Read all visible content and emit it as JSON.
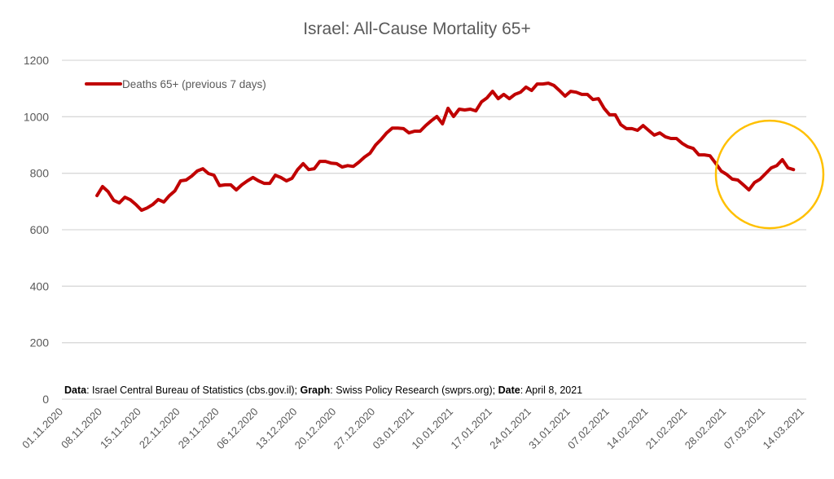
{
  "chart_data": {
    "type": "line",
    "title": "Israel: All-Cause Mortality 65+",
    "xlabel": "",
    "ylabel": "",
    "ylim": [
      0,
      1200
    ],
    "yticks": [
      0,
      200,
      400,
      600,
      800,
      1000,
      1200
    ],
    "grid": true,
    "x_start_date": "01.11.2020",
    "x_end_date": "14.03.2021",
    "xtick_labels": [
      "01.11.2020",
      "08.11.2020",
      "15.11.2020",
      "22.11.2020",
      "29.11.2020",
      "06.12.2020",
      "13.12.2020",
      "20.12.2020",
      "27.12.2020",
      "03.01.2021",
      "10.01.2021",
      "17.01.2021",
      "24.01.2021",
      "31.01.2021",
      "07.02.2021",
      "14.02.2021",
      "21.02.2021",
      "28.02.2021",
      "07.03.2021",
      "14.03.2021"
    ],
    "legend": {
      "position": "top-left",
      "entries": [
        "Deaths 65+ (previous 7 days)"
      ]
    },
    "series": [
      {
        "name": "Deaths 65+ (previous 7 days)",
        "color": "#c00000",
        "start_day_offset": 6,
        "day_step": 1,
        "values": [
          721,
          753,
          735,
          704,
          695,
          715,
          706,
          689,
          669,
          677,
          689,
          707,
          698,
          721,
          738,
          773,
          776,
          790,
          808,
          816,
          799,
          793,
          756,
          759,
          759,
          741,
          759,
          773,
          785,
          773,
          764,
          764,
          793,
          785,
          773,
          782,
          813,
          834,
          813,
          816,
          842,
          842,
          836,
          834,
          822,
          827,
          824,
          839,
          857,
          871,
          900,
          920,
          943,
          960,
          960,
          958,
          943,
          949,
          949,
          969,
          986,
          1001,
          975,
          1030,
          1001,
          1027,
          1024,
          1027,
          1021,
          1053,
          1067,
          1090,
          1064,
          1079,
          1064,
          1079,
          1087,
          1105,
          1093,
          1116,
          1116,
          1119,
          1111,
          1093,
          1073,
          1090,
          1087,
          1079,
          1079,
          1061,
          1064,
          1030,
          1007,
          1007,
          972,
          958,
          958,
          952,
          969,
          952,
          935,
          943,
          929,
          923,
          923,
          906,
          894,
          888,
          865,
          865,
          862,
          836,
          808,
          796,
          779,
          776,
          759,
          741,
          767,
          779,
          799,
          819,
          827,
          848,
          819,
          813
        ]
      }
    ],
    "annotations": [
      {
        "type": "circle",
        "color": "#ffc000",
        "center_date": "08.03.2021",
        "center_value": 790,
        "note": "highlighted recent rise"
      }
    ],
    "source_note": {
      "parts": [
        {
          "text": "Data",
          "bold": true
        },
        {
          "text": ": Israel Central Bureau of Statistics (cbs.gov.il); ",
          "bold": false
        },
        {
          "text": "Graph",
          "bold": true
        },
        {
          "text": ": Swiss Policy Research (swprs.org); ",
          "bold": false
        },
        {
          "text": "Date",
          "bold": true
        },
        {
          "text": ": April 8, 2021",
          "bold": false
        }
      ]
    }
  },
  "colors": {
    "line": "#c00000",
    "highlight_circle": "#ffc000",
    "grid": "#d9d9d9",
    "text": "#595959"
  }
}
